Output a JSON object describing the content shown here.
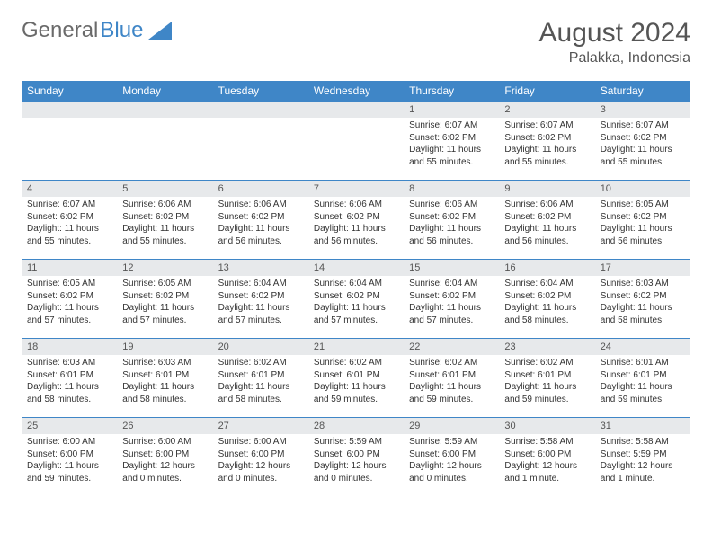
{
  "brand": {
    "word1": "General",
    "word2": "Blue"
  },
  "title": "August 2024",
  "location": "Palakka, Indonesia",
  "colors": {
    "header_bg": "#3f86c7",
    "header_text": "#ffffff",
    "daynum_bg": "#e7e9eb",
    "text": "#333333",
    "title_text": "#555555",
    "row_border": "#3f86c7",
    "page_bg": "#ffffff"
  },
  "fonts": {
    "family": "Arial",
    "title_size": 30,
    "location_size": 16,
    "th_size": 12,
    "daynum_size": 11,
    "body_size": 10
  },
  "dayHeaders": [
    "Sunday",
    "Monday",
    "Tuesday",
    "Wednesday",
    "Thursday",
    "Friday",
    "Saturday"
  ],
  "weeks": [
    [
      {
        "empty": true
      },
      {
        "empty": true
      },
      {
        "empty": true
      },
      {
        "empty": true
      },
      {
        "num": "1",
        "sunrise": "6:07 AM",
        "sunset": "6:02 PM",
        "daylight": "11 hours and 55 minutes."
      },
      {
        "num": "2",
        "sunrise": "6:07 AM",
        "sunset": "6:02 PM",
        "daylight": "11 hours and 55 minutes."
      },
      {
        "num": "3",
        "sunrise": "6:07 AM",
        "sunset": "6:02 PM",
        "daylight": "11 hours and 55 minutes."
      }
    ],
    [
      {
        "num": "4",
        "sunrise": "6:07 AM",
        "sunset": "6:02 PM",
        "daylight": "11 hours and 55 minutes."
      },
      {
        "num": "5",
        "sunrise": "6:06 AM",
        "sunset": "6:02 PM",
        "daylight": "11 hours and 55 minutes."
      },
      {
        "num": "6",
        "sunrise": "6:06 AM",
        "sunset": "6:02 PM",
        "daylight": "11 hours and 56 minutes."
      },
      {
        "num": "7",
        "sunrise": "6:06 AM",
        "sunset": "6:02 PM",
        "daylight": "11 hours and 56 minutes."
      },
      {
        "num": "8",
        "sunrise": "6:06 AM",
        "sunset": "6:02 PM",
        "daylight": "11 hours and 56 minutes."
      },
      {
        "num": "9",
        "sunrise": "6:06 AM",
        "sunset": "6:02 PM",
        "daylight": "11 hours and 56 minutes."
      },
      {
        "num": "10",
        "sunrise": "6:05 AM",
        "sunset": "6:02 PM",
        "daylight": "11 hours and 56 minutes."
      }
    ],
    [
      {
        "num": "11",
        "sunrise": "6:05 AM",
        "sunset": "6:02 PM",
        "daylight": "11 hours and 57 minutes."
      },
      {
        "num": "12",
        "sunrise": "6:05 AM",
        "sunset": "6:02 PM",
        "daylight": "11 hours and 57 minutes."
      },
      {
        "num": "13",
        "sunrise": "6:04 AM",
        "sunset": "6:02 PM",
        "daylight": "11 hours and 57 minutes."
      },
      {
        "num": "14",
        "sunrise": "6:04 AM",
        "sunset": "6:02 PM",
        "daylight": "11 hours and 57 minutes."
      },
      {
        "num": "15",
        "sunrise": "6:04 AM",
        "sunset": "6:02 PM",
        "daylight": "11 hours and 57 minutes."
      },
      {
        "num": "16",
        "sunrise": "6:04 AM",
        "sunset": "6:02 PM",
        "daylight": "11 hours and 58 minutes."
      },
      {
        "num": "17",
        "sunrise": "6:03 AM",
        "sunset": "6:02 PM",
        "daylight": "11 hours and 58 minutes."
      }
    ],
    [
      {
        "num": "18",
        "sunrise": "6:03 AM",
        "sunset": "6:01 PM",
        "daylight": "11 hours and 58 minutes."
      },
      {
        "num": "19",
        "sunrise": "6:03 AM",
        "sunset": "6:01 PM",
        "daylight": "11 hours and 58 minutes."
      },
      {
        "num": "20",
        "sunrise": "6:02 AM",
        "sunset": "6:01 PM",
        "daylight": "11 hours and 58 minutes."
      },
      {
        "num": "21",
        "sunrise": "6:02 AM",
        "sunset": "6:01 PM",
        "daylight": "11 hours and 59 minutes."
      },
      {
        "num": "22",
        "sunrise": "6:02 AM",
        "sunset": "6:01 PM",
        "daylight": "11 hours and 59 minutes."
      },
      {
        "num": "23",
        "sunrise": "6:02 AM",
        "sunset": "6:01 PM",
        "daylight": "11 hours and 59 minutes."
      },
      {
        "num": "24",
        "sunrise": "6:01 AM",
        "sunset": "6:01 PM",
        "daylight": "11 hours and 59 minutes."
      }
    ],
    [
      {
        "num": "25",
        "sunrise": "6:00 AM",
        "sunset": "6:00 PM",
        "daylight": "11 hours and 59 minutes."
      },
      {
        "num": "26",
        "sunrise": "6:00 AM",
        "sunset": "6:00 PM",
        "daylight": "12 hours and 0 minutes."
      },
      {
        "num": "27",
        "sunrise": "6:00 AM",
        "sunset": "6:00 PM",
        "daylight": "12 hours and 0 minutes."
      },
      {
        "num": "28",
        "sunrise": "5:59 AM",
        "sunset": "6:00 PM",
        "daylight": "12 hours and 0 minutes."
      },
      {
        "num": "29",
        "sunrise": "5:59 AM",
        "sunset": "6:00 PM",
        "daylight": "12 hours and 0 minutes."
      },
      {
        "num": "30",
        "sunrise": "5:58 AM",
        "sunset": "6:00 PM",
        "daylight": "12 hours and 1 minute."
      },
      {
        "num": "31",
        "sunrise": "5:58 AM",
        "sunset": "5:59 PM",
        "daylight": "12 hours and 1 minute."
      }
    ]
  ],
  "labels": {
    "sunrise": "Sunrise: ",
    "sunset": "Sunset: ",
    "daylight": "Daylight: "
  }
}
